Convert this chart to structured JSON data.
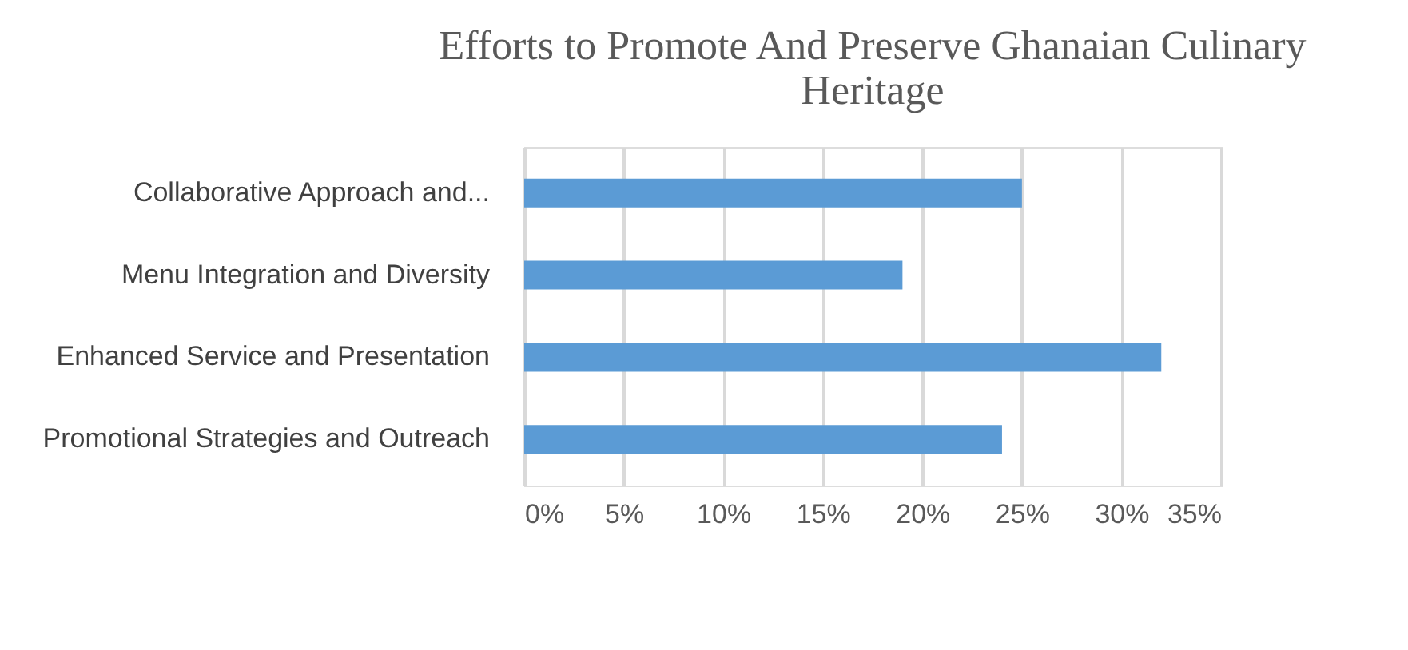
{
  "chart_data": {
    "type": "bar",
    "orientation": "horizontal",
    "title": "Efforts to Promote And Preserve Ghanaian Culinary Heritage",
    "categories": [
      "Collaborative Approach and...",
      "Menu Integration and Diversity",
      "Enhanced Service and Presentation",
      "Promotional Strategies and Outreach"
    ],
    "values": [
      25,
      19,
      32,
      24
    ],
    "color": "#5b9bd5",
    "xlim": [
      0,
      35
    ],
    "xticks": [
      {
        "value": 0,
        "label": "0%"
      },
      {
        "value": 5,
        "label": "5%"
      },
      {
        "value": 10,
        "label": "10%"
      },
      {
        "value": 15,
        "label": "15%"
      },
      {
        "value": 20,
        "label": "20%"
      },
      {
        "value": 25,
        "label": "25%"
      },
      {
        "value": 30,
        "label": "30%"
      },
      {
        "value": 35,
        "label": "35%"
      }
    ],
    "grid": "x"
  }
}
